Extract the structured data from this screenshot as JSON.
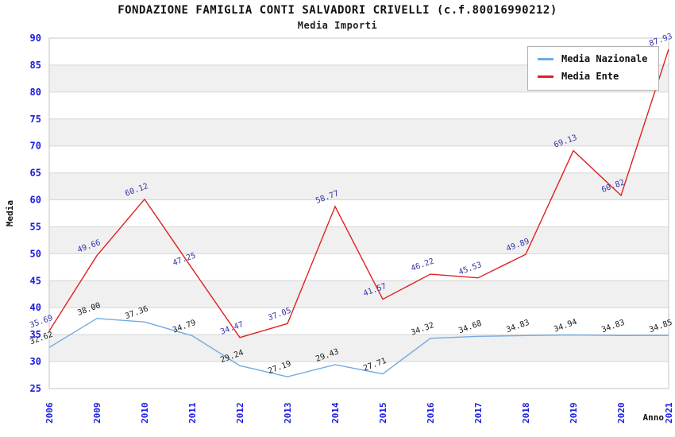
{
  "title": "FONDAZIONE FAMIGLIA CONTI SALVADORI CRIVELLI (c.f.80016990212)",
  "subtitle": "Media Importi",
  "legend": {
    "items": [
      {
        "label": "Media Nazionale",
        "color": "#72abe2"
      },
      {
        "label": "Media Ente",
        "color": "#e02020"
      }
    ]
  },
  "colors": {
    "tick_label": "#1a1ae0",
    "grid_line": "#d6d6d6",
    "band_fill": "#f0f0f0",
    "plot_border": "#c4c4c4",
    "axis_title": "#111111",
    "background": "#ffffff"
  },
  "chart_data": {
    "type": "line",
    "title": "Media Importi",
    "xlabel": "Anno",
    "ylabel": "Media",
    "ylim": [
      25,
      90
    ],
    "ytick_step": 5,
    "grid": "horizontal-bands-alternating",
    "legend_position": "top-right",
    "categories": [
      "2006",
      "2009",
      "2010",
      "2011",
      "2012",
      "2013",
      "2014",
      "2015",
      "2016",
      "2017",
      "2018",
      "2019",
      "2020",
      "2021"
    ],
    "series": [
      {
        "name": "Media Nazionale",
        "color": "#72abe2",
        "label_color": "#1a1a1a",
        "values": [
          32.62,
          38.0,
          37.36,
          34.79,
          29.24,
          27.19,
          29.43,
          27.71,
          34.32,
          34.68,
          34.83,
          34.94,
          34.83,
          34.85
        ]
      },
      {
        "name": "Media Ente",
        "color": "#e02020",
        "label_color": "#3333aa",
        "values": [
          35.69,
          49.66,
          60.12,
          47.25,
          34.47,
          37.05,
          58.77,
          41.57,
          46.22,
          45.53,
          49.89,
          69.13,
          60.82,
          87.93
        ]
      }
    ]
  }
}
